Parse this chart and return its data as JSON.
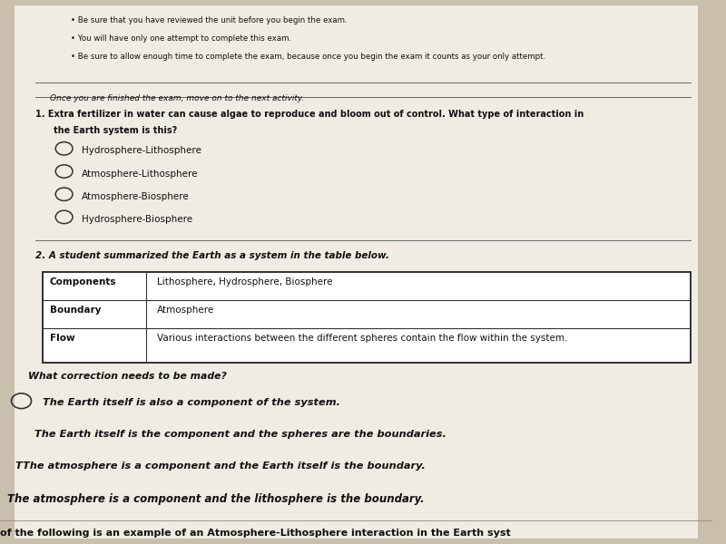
{
  "bg_color": "#c8bfac",
  "paper_color": "#f0ece3",
  "bullet_lines": [
    "Be sure that you have reviewed the unit before you begin the exam.",
    "You will have only one attempt to complete this exam.",
    "Be sure to allow enough time to complete the exam, because once you begin the exam it counts as your only attempt."
  ],
  "once_line": "Once you are finished the exam, move on to the next activity.",
  "q1_text": "1. Extra fertilizer in water can cause algae to reproduce and bloom out of control. What type of interaction in\n   the Earth system is this?",
  "q1_options": [
    "Hydrosphere-Lithosphere",
    "Atmosphere-Lithosphere",
    "Atmosphere-Biosphere",
    "Hydrosphere-Biosphere"
  ],
  "q2_intro": "2. A student summarized the Earth as a system in the table below.",
  "table_rows": [
    [
      "Components",
      "Lithosphere, Hydrosphere, Biosphere"
    ],
    [
      "Boundary",
      "Atmosphere"
    ],
    [
      "Flow",
      "Various interactions between the different spheres contain the flow within the system."
    ]
  ],
  "correction_q": "What correction needs to be made?",
  "answer_options": [
    "The Earth itself is also a component of the system.",
    "The Earth itself is the component and the spheres are the boundaries.",
    "The atmosphere is a component and the Earth itself is the boundary.",
    "he atmosphere is a component and the lithosphere is the boundary."
  ],
  "q3_partial": "of the following is an example of an Atmosphere-Lithosphere interaction in the Earth syst"
}
